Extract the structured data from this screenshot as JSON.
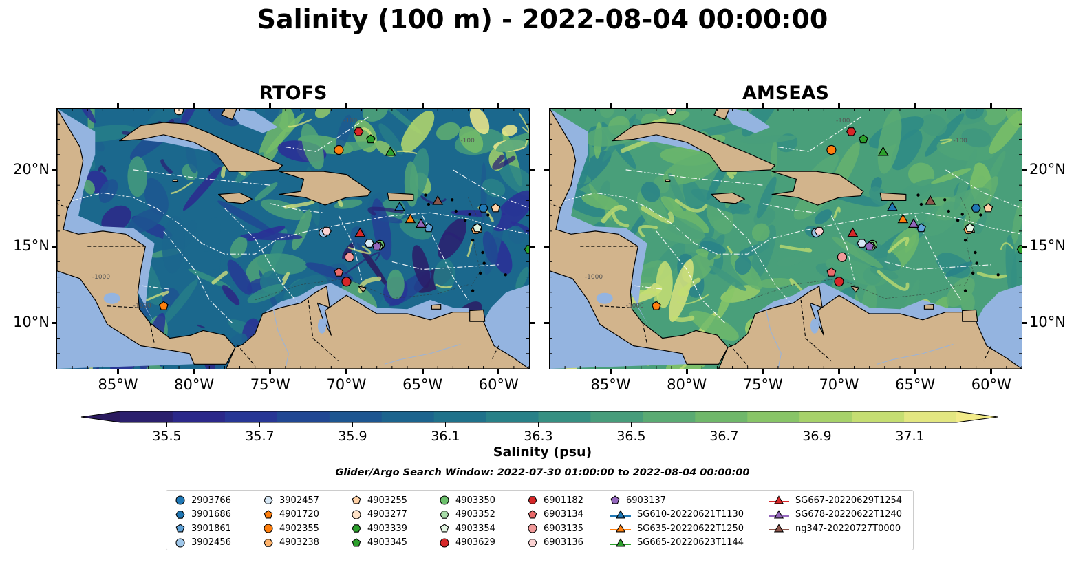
{
  "title": "Salinity (100 m) - 2022-08-04 00:00:00",
  "panels": [
    {
      "title": "RTOFS",
      "model": "rtofs"
    },
    {
      "title": "AMSEAS",
      "model": "amseas"
    }
  ],
  "map": {
    "lon_range": [
      -89,
      -58
    ],
    "lat_range": [
      7,
      24
    ],
    "x_ticks": [
      "85°W",
      "80°W",
      "75°W",
      "70°W",
      "65°W",
      "60°W"
    ],
    "y_ticks": [
      "20°N",
      "15°N",
      "10°N"
    ],
    "contour_labels": [
      "-1000",
      "-100"
    ],
    "colors": {
      "land": "#d2b48c",
      "ocean_mask": "#94b4e0",
      "coast": "#000000"
    }
  },
  "colorbar": {
    "label": "Salinity (psu)",
    "ticks": [
      "35.5",
      "35.7",
      "35.9",
      "36.1",
      "36.3",
      "36.5",
      "36.7",
      "36.9",
      "37.1"
    ],
    "range": [
      35.4,
      37.2
    ],
    "colormap": "haline",
    "extend": "both"
  },
  "search_window": "Glider/Argo Search Window: 2022-07-30 01:00:00 to 2022-08-04 00:00:00",
  "platforms": [
    {
      "id": "2903766",
      "marker": "circle",
      "color": "#1f77b4"
    },
    {
      "id": "3901686",
      "marker": "hexagon",
      "color": "#1f77b4",
      "lon": -61.0,
      "lat": 17.5
    },
    {
      "id": "3901861",
      "marker": "pentagon",
      "color": "#5fa2d8",
      "lon": -64.6,
      "lat": 16.2
    },
    {
      "id": "3902456",
      "marker": "circle",
      "color": "#9fc7ea",
      "lon": -71.5,
      "lat": 15.9
    },
    {
      "id": "3902457",
      "marker": "hexagon",
      "color": "#d7e8f6",
      "lon": -68.5,
      "lat": 15.2
    },
    {
      "id": "4901720",
      "marker": "pentagon",
      "color": "#ff7f0e",
      "lon": -82.0,
      "lat": 11.1
    },
    {
      "id": "4902355",
      "marker": "circle",
      "color": "#ff7f0e",
      "lon": -70.5,
      "lat": 21.3
    },
    {
      "id": "4903238",
      "marker": "hexagon",
      "color": "#ffb36b",
      "lon": -61.5,
      "lat": 16.1
    },
    {
      "id": "4903255",
      "marker": "pentagon",
      "color": "#ffd1a6",
      "lon": -60.2,
      "lat": 17.5
    },
    {
      "id": "4903277",
      "marker": "circle",
      "color": "#ffe3c8",
      "lon": -81.0,
      "lat": 23.9
    },
    {
      "id": "4903339",
      "marker": "hexagon",
      "color": "#2ca02c",
      "lon": -58.0,
      "lat": 14.8
    },
    {
      "id": "4903345",
      "marker": "pentagon",
      "color": "#2ca02c",
      "lon": -68.4,
      "lat": 22.0
    },
    {
      "id": "4903350",
      "marker": "circle",
      "color": "#6cc06c",
      "lon": -67.8,
      "lat": 15.1
    },
    {
      "id": "4903352",
      "marker": "hexagon",
      "color": "#a8dca8",
      "lon": -67.9,
      "lat": 15.0
    },
    {
      "id": "4903354",
      "marker": "pentagon",
      "color": "#e2f5e2",
      "lon": -61.4,
      "lat": 16.2
    },
    {
      "id": "4903629",
      "marker": "circle",
      "color": "#d62728",
      "lon": -70.0,
      "lat": 12.7
    },
    {
      "id": "6901182",
      "marker": "hexagon",
      "color": "#d62728",
      "lon": -69.2,
      "lat": 22.5
    },
    {
      "id": "6903134",
      "marker": "pentagon",
      "color": "#ea6a6a",
      "lon": -70.5,
      "lat": 13.3
    },
    {
      "id": "6903135",
      "marker": "circle",
      "color": "#f29a9a",
      "lon": -69.8,
      "lat": 14.3
    },
    {
      "id": "6903136",
      "marker": "hexagon",
      "color": "#fbd2d2",
      "lon": -71.3,
      "lat": 16.0
    },
    {
      "id": "6903137",
      "marker": "pentagon",
      "color": "#9467bd",
      "lon": -68.0,
      "lat": 15.0
    },
    {
      "id": "SG610-20220621T1130",
      "marker": "triangle",
      "color": "#1f77b4",
      "lon": -66.5,
      "lat": 17.6
    },
    {
      "id": "SG635-20220622T1250",
      "marker": "triangle",
      "color": "#ff7f0e",
      "lon": -65.8,
      "lat": 16.8
    },
    {
      "id": "SG665-20220623T1144",
      "marker": "triangle",
      "color": "#2ca02c",
      "lon": -67.1,
      "lat": 21.2
    },
    {
      "id": "SG667-20220629T1254",
      "marker": "triangle",
      "color": "#d62728",
      "lon": -69.1,
      "lat": 15.9
    },
    {
      "id": "SG678-20220622T1240",
      "marker": "triangle",
      "color": "#9467bd",
      "lon": -65.1,
      "lat": 16.5
    },
    {
      "id": "ng347-20220727T0000",
      "marker": "triangle",
      "color": "#8c564b",
      "lon": -64.0,
      "lat": 18.0
    }
  ]
}
